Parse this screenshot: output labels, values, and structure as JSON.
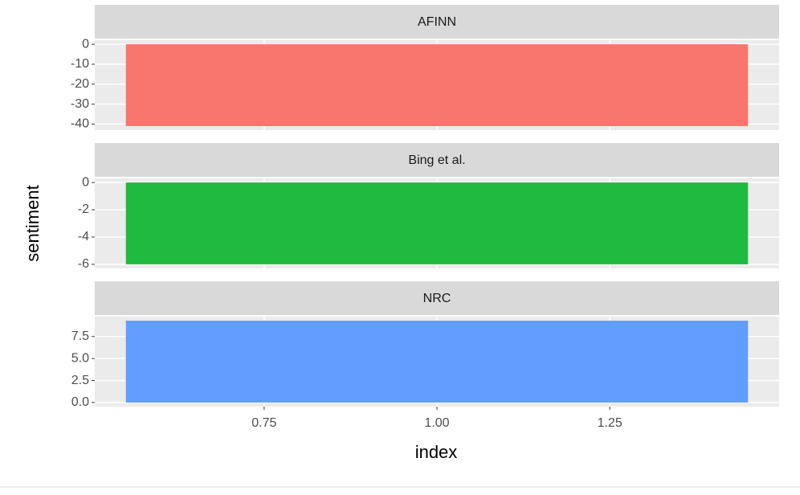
{
  "chart_data": {
    "type": "bar",
    "xlabel": "index",
    "ylabel": "sentiment",
    "xlim": [
      0.505,
      1.495
    ],
    "xticks": [
      0.75,
      {
        "value": 1,
        "label": "1.00"
      },
      1.25
    ],
    "grid": true,
    "panels": [
      {
        "title": "AFINN",
        "x": [
          1
        ],
        "values": [
          -41
        ],
        "color": "#f8766d",
        "ylim": [
          -43.05,
          2.05
        ],
        "yticks": [
          0,
          -10,
          -20,
          -30,
          -40
        ]
      },
      {
        "title": "Bing et al.",
        "x": [
          1
        ],
        "values": [
          -6
        ],
        "color": "#1fba40",
        "ylim": [
          -6.3,
          0.3
        ],
        "yticks": [
          0,
          -2,
          -4,
          -6
        ]
      },
      {
        "title": "NRC",
        "x": [
          1
        ],
        "values": [
          9.3
        ],
        "color": "#619cff",
        "ylim": [
          -0.465,
          9.765
        ],
        "yticks": [
          {
            "value": 7.5,
            "label": "7.5"
          },
          {
            "value": 5,
            "label": "5.0"
          },
          {
            "value": 2.5,
            "label": "2.5"
          },
          {
            "value": 0,
            "label": "0.0"
          }
        ]
      }
    ]
  }
}
